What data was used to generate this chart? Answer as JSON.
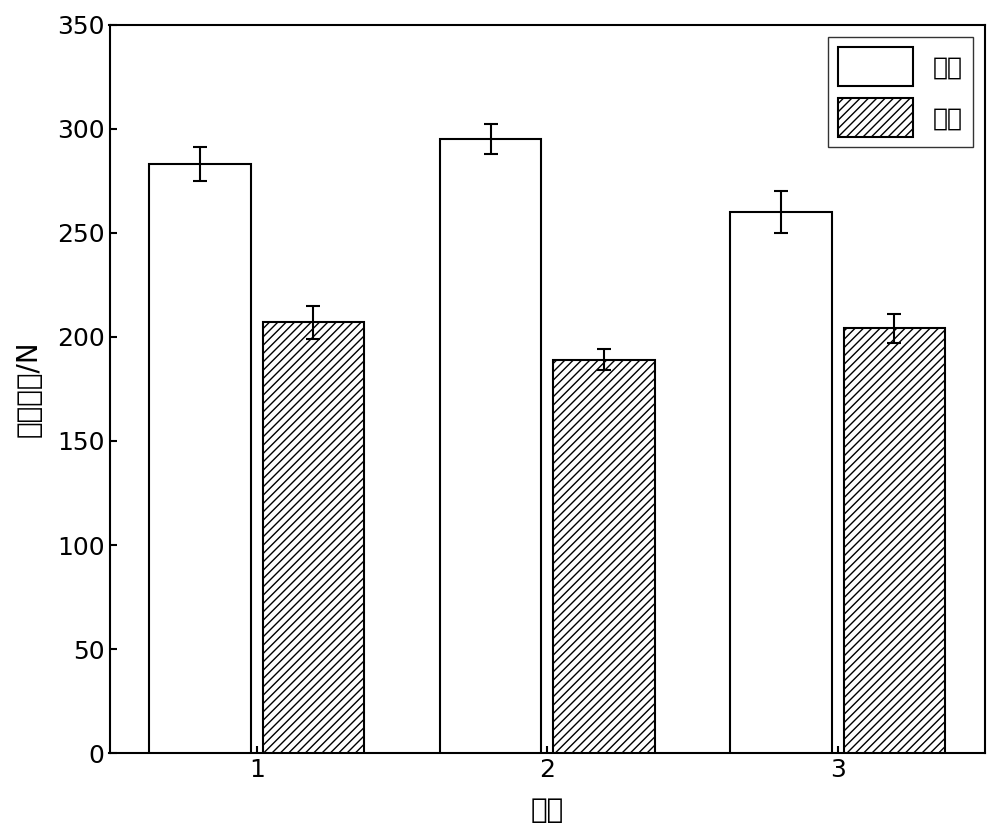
{
  "categories": [
    "1",
    "2",
    "3"
  ],
  "jing_values": [
    283,
    295,
    260
  ],
  "wei_values": [
    207,
    189,
    204
  ],
  "jing_errors": [
    8,
    7,
    10
  ],
  "wei_errors": [
    8,
    5,
    7
  ],
  "ylabel": "断裂强力/N",
  "xlabel": "样本",
  "ylim": [
    0,
    350
  ],
  "yticks": [
    0,
    50,
    100,
    150,
    200,
    250,
    300,
    350
  ],
  "bar_width": 0.35,
  "bar_gap": 0.04,
  "jing_color": "#ffffff",
  "wei_color": "#ffffff",
  "edge_color": "#000000",
  "hatch_pattern": "////",
  "legend_jing": "经向",
  "legend_wei": "纬向",
  "label_fontsize": 20,
  "tick_fontsize": 18,
  "legend_fontsize": 18,
  "background_color": "#ffffff"
}
